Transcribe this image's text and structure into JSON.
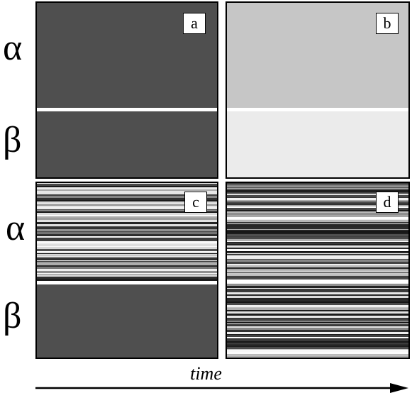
{
  "figure": {
    "row_labels": [
      "α",
      "β",
      "α",
      "β"
    ],
    "time_label": "time",
    "panels": [
      {
        "id": "a",
        "label": "a",
        "upper": {
          "fill": "#4f4f4f",
          "pattern": "solid"
        },
        "lower": {
          "fill": "#4f4f4f",
          "pattern": "solid"
        }
      },
      {
        "id": "b",
        "label": "b",
        "upper": {
          "fill": "#c6c6c6",
          "pattern": "solid"
        },
        "lower": {
          "fill": "#ebebeb",
          "pattern": "solid"
        }
      },
      {
        "id": "c",
        "label": "c",
        "upper": {
          "fill": "striped",
          "pattern": "stripes-light"
        },
        "lower": {
          "fill": "#4f4f4f",
          "pattern": "solid"
        }
      },
      {
        "id": "d",
        "label": "d",
        "upper": {
          "fill": "striped",
          "pattern": "stripes-dark"
        },
        "lower": {
          "fill": "striped",
          "pattern": "stripes-dark"
        }
      }
    ],
    "colors": {
      "border": "#000000",
      "separator": "#ffffff",
      "arrow": "#000000"
    }
  }
}
